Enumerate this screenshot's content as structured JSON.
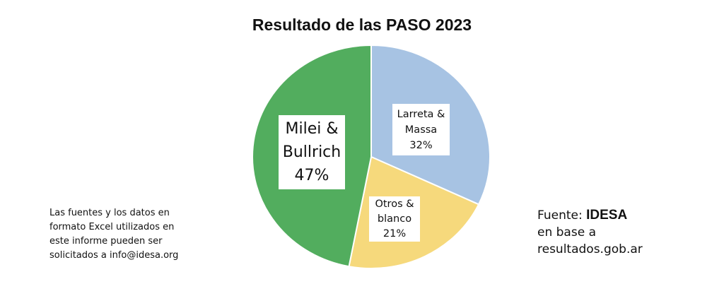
{
  "chart_data": {
    "type": "pie",
    "title": "Resultado de las PASO 2023",
    "slices": [
      {
        "label_lines": [
          "Larreta &",
          "Massa",
          "32%"
        ],
        "value": 32,
        "color": "#a7c3e3"
      },
      {
        "label_lines": [
          "Otros &",
          "blanco",
          "21%"
        ],
        "value": 21,
        "color": "#f6d97c"
      },
      {
        "label_lines": [
          "Milei &",
          "Bullrich",
          "47%"
        ],
        "value": 47,
        "color": "#52ad5e"
      }
    ],
    "start": "top",
    "direction": "clockwise"
  },
  "note_lines": [
    "Las fuentes y los datos en",
    "formato Excel utilizados en",
    "este informe pueden ser",
    "solicitados a info@idesa.org"
  ],
  "source": {
    "prefix": "Fuente: ",
    "brand": "IDESA",
    "line2": "en base a",
    "line3": "resultados.gob.ar"
  }
}
